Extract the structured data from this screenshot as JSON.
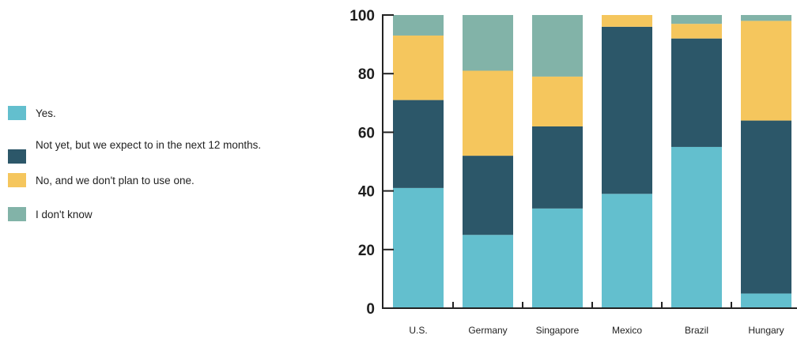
{
  "chart_data": {
    "type": "bar",
    "stacked": true,
    "title": "",
    "xlabel": "",
    "ylabel": "",
    "ylim": [
      0,
      100
    ],
    "yticks": [
      0,
      20,
      40,
      60,
      80,
      100
    ],
    "categories": [
      "U.S.",
      "Germany",
      "Singapore",
      "Mexico",
      "Brazil",
      "Hungary"
    ],
    "series": [
      {
        "name": "Yes.",
        "color": "#63bfce",
        "values": [
          41,
          25,
          34,
          39,
          55,
          5
        ]
      },
      {
        "name": "Not yet, but we expect to in the next 12 months.",
        "color": "#2c5769",
        "values": [
          30,
          27,
          28,
          57,
          37,
          59
        ]
      },
      {
        "name": "No, and we don't plan to use one.",
        "color": "#f5c65d",
        "values": [
          22,
          29,
          17,
          4,
          5,
          34
        ]
      },
      {
        "name": "I don't know",
        "color": "#82b3a8",
        "values": [
          7,
          19,
          21,
          0,
          3,
          2
        ]
      }
    ],
    "legend_position": "left",
    "grid": false
  }
}
